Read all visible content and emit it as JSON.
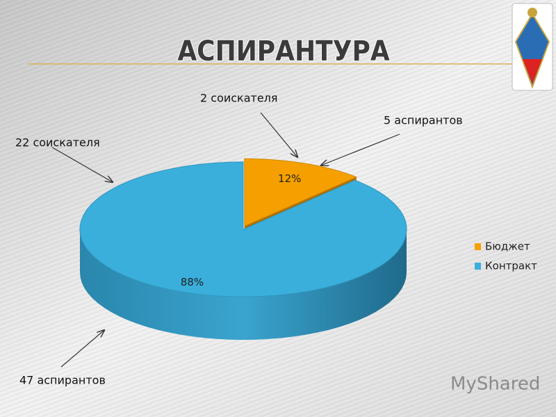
{
  "chart_data": {
    "type": "pie",
    "title": "АСПИРАНТУРА",
    "categories": [
      "Бюджет",
      "Контракт"
    ],
    "values": [
      12,
      88
    ],
    "value_labels": [
      "12%",
      "88%"
    ],
    "colors": [
      "#f5a000",
      "#3aafdc"
    ],
    "legend": "right",
    "annotations": [
      "2 соискателя",
      "5 аспирантов",
      "22 соискателя",
      "47 аспирантов"
    ]
  },
  "watermark": "MyShared"
}
